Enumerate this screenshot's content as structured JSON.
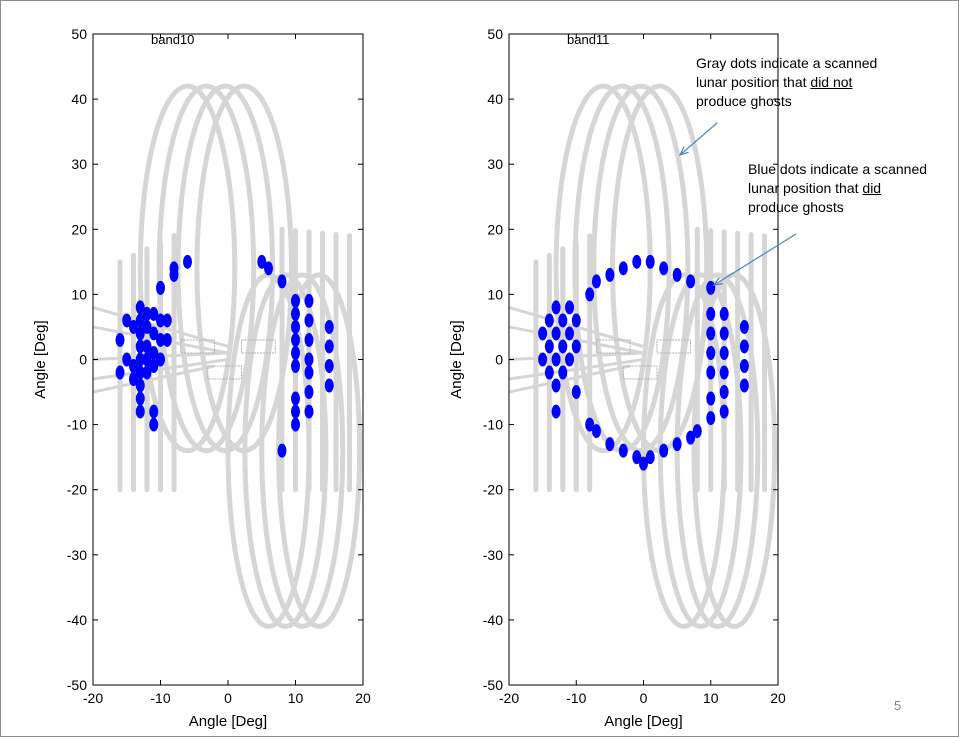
{
  "slide": {
    "page_number": "5"
  },
  "annotations": {
    "gray": {
      "line1": "Gray dots indicate a scanned",
      "line2_prefix": "lunar position that ",
      "line2_underlined": "did not",
      "line3": "produce ghosts"
    },
    "blue": {
      "line1": "Blue dots indicate a scanned",
      "line2_prefix": "lunar position that ",
      "line2_underlined": "did",
      "line3": "produce ghosts"
    }
  },
  "colors": {
    "gray_dots": "#d6d6d6",
    "blue_dots": "#0000ff",
    "axes": "#000000",
    "arrow": "#4f81bd"
  },
  "chart_data": [
    {
      "type": "scatter",
      "title": "band10",
      "xlabel": "Angle [Deg]",
      "ylabel": "Angle [Deg]",
      "xlim": [
        -20,
        20
      ],
      "ylim": [
        -50,
        50
      ],
      "xticks": [
        -20,
        -10,
        0,
        10,
        20
      ],
      "yticks": [
        -50,
        -40,
        -30,
        -20,
        -10,
        0,
        10,
        20,
        30,
        40,
        50
      ],
      "grid": false,
      "series": [
        {
          "color": "#d6d6d6",
          "values_description": "scanned lunar positions (not producing ghosts): tall loops centered near x=0 spanning y=-42..42, vertical scan columns x=-16..18",
          "points": [
            [
              -16,
              -20
            ],
            [
              -16,
              15
            ],
            [
              -14,
              -20
            ],
            [
              -14,
              16
            ],
            [
              -12,
              -20
            ],
            [
              -12,
              17
            ],
            [
              -10,
              -20
            ],
            [
              -10,
              18
            ],
            [
              -8,
              -20
            ],
            [
              -8,
              19
            ],
            [
              -6,
              41
            ],
            [
              -4,
              42
            ],
            [
              -2,
              42
            ],
            [
              0,
              42
            ],
            [
              2,
              40
            ],
            [
              4,
              30
            ],
            [
              6,
              15
            ],
            [
              6,
              -30
            ],
            [
              8,
              -41
            ],
            [
              10,
              -41
            ],
            [
              12,
              -38
            ],
            [
              14,
              -30
            ],
            [
              16,
              -20
            ],
            [
              16,
              19
            ],
            [
              18,
              -19
            ],
            [
              18,
              19
            ],
            [
              -2,
              -41
            ],
            [
              0,
              -41
            ],
            [
              2,
              -40
            ],
            [
              -4,
              -30
            ]
          ]
        },
        {
          "color": "#0000ff",
          "values_description": "scanned lunar positions that produced ghosts",
          "points": [
            [
              -16,
              3
            ],
            [
              -16,
              -2
            ],
            [
              -15,
              6
            ],
            [
              -15,
              0
            ],
            [
              -14,
              5
            ],
            [
              -14,
              -1
            ],
            [
              -14,
              -3
            ],
            [
              -13,
              8
            ],
            [
              -13,
              6
            ],
            [
              -13,
              4
            ],
            [
              -13,
              2
            ],
            [
              -13,
              0
            ],
            [
              -13,
              -2
            ],
            [
              -13,
              -4
            ],
            [
              -13,
              -6
            ],
            [
              -13,
              -8
            ],
            [
              -12,
              7
            ],
            [
              -12,
              5
            ],
            [
              -12,
              2
            ],
            [
              -12,
              0
            ],
            [
              -12,
              -2
            ],
            [
              -11,
              7
            ],
            [
              -11,
              4
            ],
            [
              -11,
              1
            ],
            [
              -11,
              -1
            ],
            [
              -11,
              -8
            ],
            [
              -11,
              -10
            ],
            [
              -10,
              6
            ],
            [
              -10,
              3
            ],
            [
              -10,
              0
            ],
            [
              -10,
              11
            ],
            [
              -9,
              6
            ],
            [
              -9,
              3
            ],
            [
              -8,
              14
            ],
            [
              -8,
              13
            ],
            [
              -6,
              15
            ],
            [
              5,
              15
            ],
            [
              6,
              14
            ],
            [
              8,
              12
            ],
            [
              8,
              -14
            ],
            [
              10,
              9
            ],
            [
              10,
              7
            ],
            [
              10,
              5
            ],
            [
              10,
              3
            ],
            [
              10,
              1
            ],
            [
              10,
              -1
            ],
            [
              10,
              -6
            ],
            [
              10,
              -8
            ],
            [
              10,
              -10
            ],
            [
              12,
              9
            ],
            [
              12,
              6
            ],
            [
              12,
              3
            ],
            [
              12,
              0
            ],
            [
              12,
              -2
            ],
            [
              12,
              -5
            ],
            [
              12,
              -8
            ],
            [
              15,
              5
            ],
            [
              15,
              2
            ],
            [
              15,
              -1
            ],
            [
              15,
              -4
            ]
          ]
        }
      ]
    },
    {
      "type": "scatter",
      "title": "band11",
      "xlabel": "Angle [Deg]",
      "ylabel": "Angle [Deg]",
      "xlim": [
        -20,
        20
      ],
      "ylim": [
        -50,
        50
      ],
      "xticks": [
        -20,
        -10,
        0,
        10,
        20
      ],
      "yticks": [
        -50,
        -40,
        -30,
        -20,
        -10,
        0,
        10,
        20,
        30,
        40,
        50
      ],
      "grid": false,
      "series": [
        {
          "color": "#d6d6d6",
          "values_description": "scanned lunar positions (not producing ghosts)",
          "points": [
            [
              -16,
              -20
            ],
            [
              -16,
              15
            ],
            [
              -14,
              -20
            ],
            [
              -14,
              16
            ],
            [
              -12,
              -20
            ],
            [
              -12,
              17
            ],
            [
              -10,
              -20
            ],
            [
              -10,
              18
            ],
            [
              -8,
              -20
            ],
            [
              -8,
              19
            ],
            [
              -6,
              41
            ],
            [
              -4,
              42
            ],
            [
              -2,
              42
            ],
            [
              0,
              42
            ],
            [
              2,
              40
            ],
            [
              4,
              30
            ],
            [
              6,
              15
            ],
            [
              6,
              -30
            ],
            [
              8,
              -41
            ],
            [
              10,
              -41
            ],
            [
              12,
              -38
            ],
            [
              14,
              -30
            ],
            [
              16,
              -20
            ],
            [
              16,
              19
            ],
            [
              18,
              -19
            ],
            [
              18,
              19
            ],
            [
              -2,
              -41
            ],
            [
              0,
              -41
            ],
            [
              2,
              -40
            ],
            [
              -4,
              -30
            ]
          ]
        },
        {
          "color": "#0000ff",
          "values_description": "scanned lunar positions that produced ghosts (ring of radius ~14 deg plus cluster at x=-13)",
          "points": [
            [
              -15,
              4
            ],
            [
              -15,
              0
            ],
            [
              -14,
              6
            ],
            [
              -14,
              2
            ],
            [
              -14,
              -2
            ],
            [
              -13,
              8
            ],
            [
              -13,
              4
            ],
            [
              -13,
              0
            ],
            [
              -13,
              -4
            ],
            [
              -13,
              -8
            ],
            [
              -12,
              6
            ],
            [
              -12,
              2
            ],
            [
              -12,
              -2
            ],
            [
              -11,
              8
            ],
            [
              -11,
              4
            ],
            [
              -11,
              0
            ],
            [
              -10,
              6
            ],
            [
              -10,
              2
            ],
            [
              -8,
              10
            ],
            [
              -8,
              -10
            ],
            [
              -10,
              -5
            ],
            [
              -7,
              12
            ],
            [
              -7,
              -11
            ],
            [
              -5,
              13
            ],
            [
              -5,
              -13
            ],
            [
              -3,
              14
            ],
            [
              -3,
              -14
            ],
            [
              -1,
              15
            ],
            [
              -1,
              -15
            ],
            [
              1,
              15
            ],
            [
              1,
              -15
            ],
            [
              3,
              14
            ],
            [
              3,
              -14
            ],
            [
              5,
              13
            ],
            [
              5,
              -13
            ],
            [
              7,
              12
            ],
            [
              7,
              -12
            ],
            [
              8,
              -11
            ],
            [
              10,
              11
            ],
            [
              10,
              7
            ],
            [
              10,
              4
            ],
            [
              10,
              1
            ],
            [
              10,
              -2
            ],
            [
              10,
              -6
            ],
            [
              10,
              -9
            ],
            [
              12,
              7
            ],
            [
              12,
              4
            ],
            [
              12,
              1
            ],
            [
              12,
              -2
            ],
            [
              12,
              -5
            ],
            [
              12,
              -8
            ],
            [
              15,
              5
            ],
            [
              15,
              2
            ],
            [
              15,
              -1
            ],
            [
              15,
              -4
            ],
            [
              0,
              -16
            ]
          ]
        }
      ]
    }
  ]
}
